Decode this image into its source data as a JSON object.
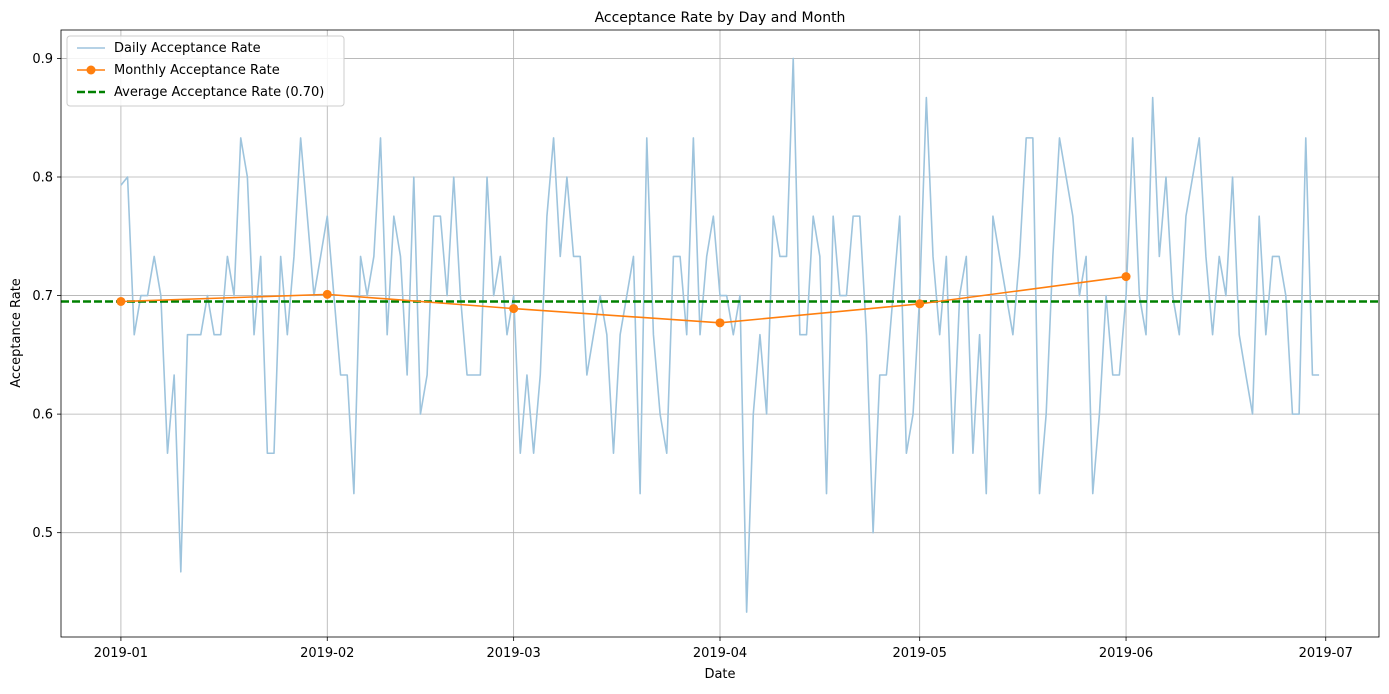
{
  "chart_data": {
    "type": "line",
    "title": "Acceptance Rate by Day and Month",
    "xlabel": "Date",
    "ylabel": "Acceptance Rate",
    "xlim": [
      "2018-12-23",
      "2019-07-09"
    ],
    "ylim": [
      0.412,
      0.924
    ],
    "x_ticks": [
      "2019-01-01",
      "2019-02-01",
      "2019-03-01",
      "2019-04-01",
      "2019-05-01",
      "2019-06-01",
      "2019-07-01"
    ],
    "x_tick_labels": [
      "2019-01",
      "2019-02",
      "2019-03",
      "2019-04",
      "2019-05",
      "2019-06",
      "2019-07"
    ],
    "y_ticks": [
      0.5,
      0.6,
      0.7,
      0.8,
      0.9
    ],
    "y_tick_labels": [
      "0.5",
      "0.6",
      "0.7",
      "0.8",
      "0.9"
    ],
    "grid": true,
    "legend": "top-left",
    "series": [
      {
        "name": "Daily Acceptance Rate",
        "color": "#9ec4dd",
        "start_date": "2019-01-01",
        "values": [
          0.793,
          0.8,
          0.667,
          0.7,
          0.7,
          0.733,
          0.7,
          0.567,
          0.633,
          0.467,
          0.667,
          0.667,
          0.667,
          0.7,
          0.667,
          0.667,
          0.733,
          0.7,
          0.833,
          0.8,
          0.667,
          0.733,
          0.567,
          0.567,
          0.733,
          0.667,
          0.733,
          0.833,
          0.767,
          0.7,
          0.733,
          0.767,
          0.7,
          0.633,
          0.633,
          0.533,
          0.733,
          0.7,
          0.733,
          0.833,
          0.667,
          0.767,
          0.733,
          0.633,
          0.8,
          0.6,
          0.633,
          0.767,
          0.767,
          0.7,
          0.8,
          0.7,
          0.633,
          0.633,
          0.633,
          0.8,
          0.7,
          0.733,
          0.667,
          0.7,
          0.567,
          0.633,
          0.567,
          0.633,
          0.767,
          0.833,
          0.733,
          0.8,
          0.733,
          0.733,
          0.633,
          0.667,
          0.7,
          0.667,
          0.567,
          0.667,
          0.7,
          0.733,
          0.533,
          0.833,
          0.667,
          0.6,
          0.567,
          0.733,
          0.733,
          0.667,
          0.833,
          0.667,
          0.733,
          0.767,
          0.7,
          0.7,
          0.667,
          0.7,
          0.433,
          0.6,
          0.667,
          0.6,
          0.767,
          0.733,
          0.733,
          0.9,
          0.667,
          0.667,
          0.767,
          0.733,
          0.533,
          0.767,
          0.7,
          0.7,
          0.767,
          0.767,
          0.667,
          0.5,
          0.633,
          0.633,
          0.7,
          0.767,
          0.567,
          0.6,
          0.7,
          0.867,
          0.733,
          0.667,
          0.733,
          0.567,
          0.7,
          0.733,
          0.567,
          0.667,
          0.533,
          0.767,
          0.733,
          0.7,
          0.667,
          0.733,
          0.833,
          0.833,
          0.533,
          0.6,
          0.733,
          0.833,
          0.8,
          0.767,
          0.7,
          0.733,
          0.533,
          0.6,
          0.7,
          0.633,
          0.633,
          0.7,
          0.833,
          0.7,
          0.667,
          0.867,
          0.733,
          0.8,
          0.7,
          0.667,
          0.767,
          0.8,
          0.833,
          0.733,
          0.667,
          0.733,
          0.7,
          0.8,
          0.667,
          0.633,
          0.6,
          0.767,
          0.667,
          0.733,
          0.733,
          0.7,
          0.6,
          0.6,
          0.833,
          0.633,
          0.633
        ]
      },
      {
        "name": "Monthly Acceptance Rate",
        "color": "#ff7f0e",
        "x": [
          "2019-01-01",
          "2019-02-01",
          "2019-03-01",
          "2019-04-01",
          "2019-05-01",
          "2019-06-01"
        ],
        "values": [
          0.695,
          0.701,
          0.689,
          0.677,
          0.693,
          0.716
        ]
      },
      {
        "name": "Average Acceptance Rate (0.70)",
        "color": "#008000",
        "style": "dashed",
        "value": 0.695
      }
    ]
  }
}
